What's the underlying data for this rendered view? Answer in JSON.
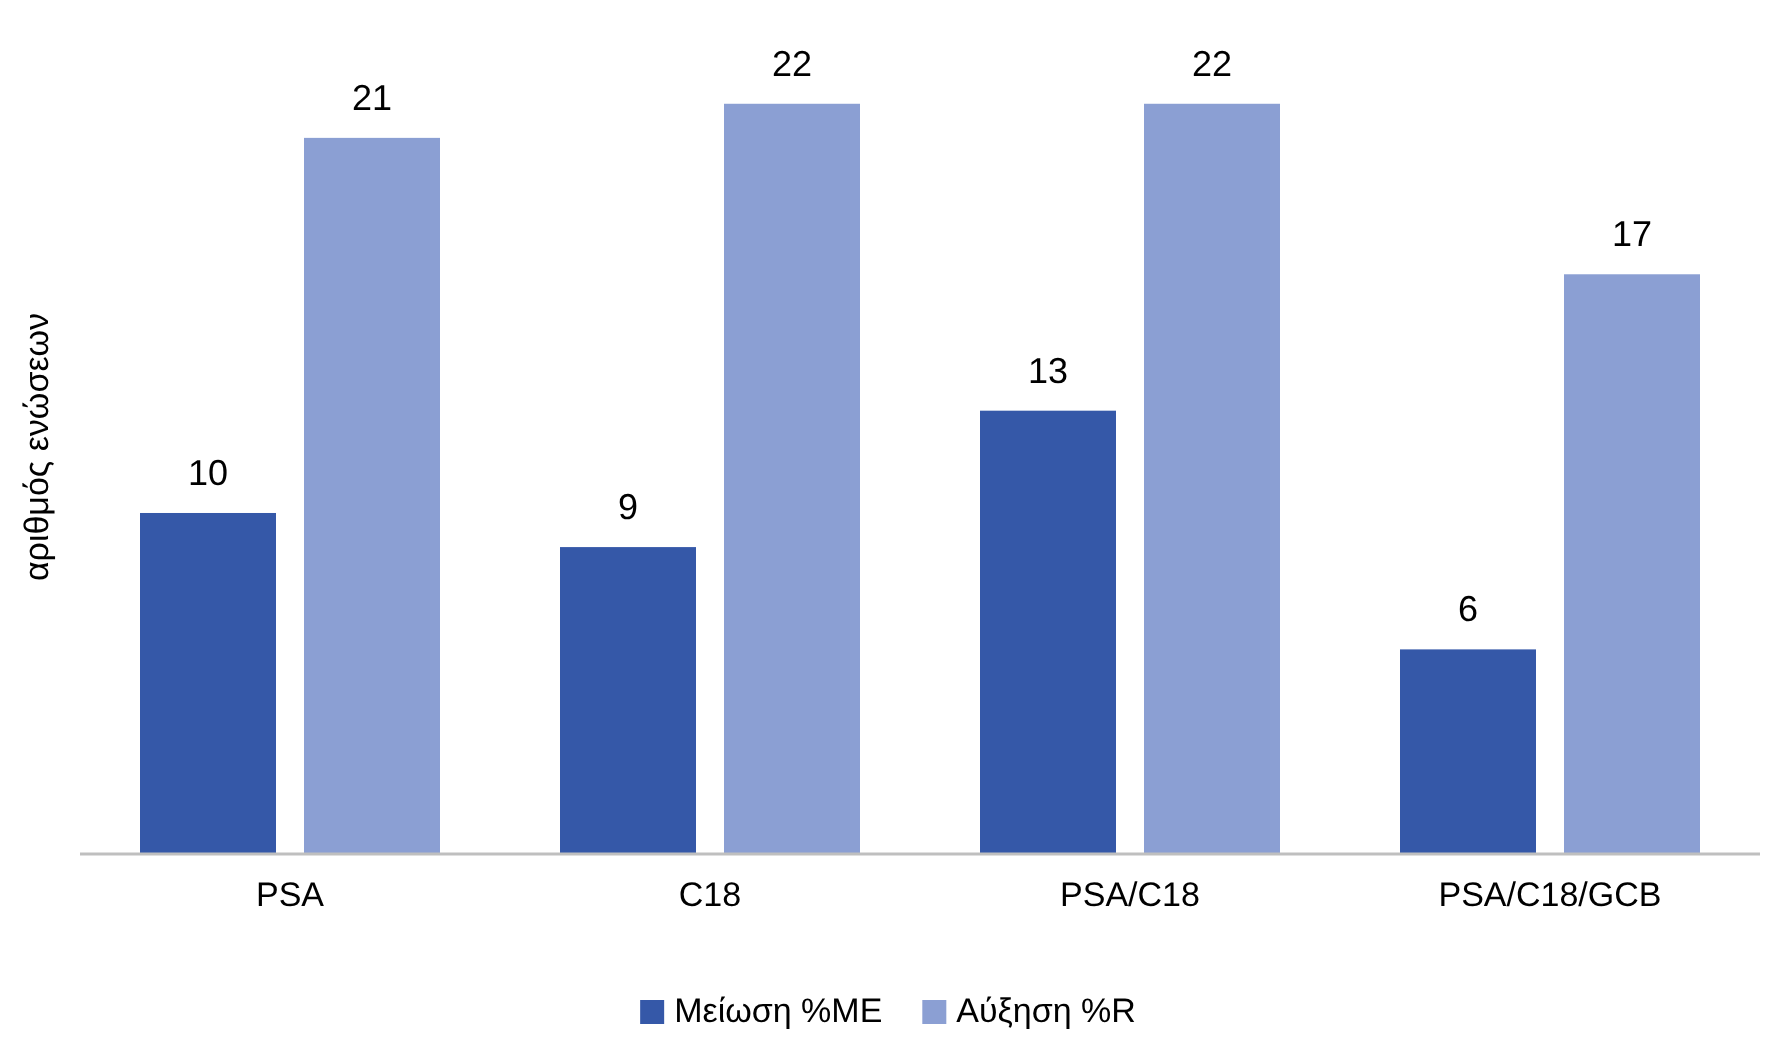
{
  "chart_data": {
    "type": "bar",
    "ylabel": "αριθμός ενώσεων",
    "categories": [
      "PSA",
      "C18",
      "PSA/C18",
      "PSA/C18/GCB"
    ],
    "series": [
      {
        "name": "Μείωση %ME",
        "color": "#3558a8",
        "values": [
          10,
          9,
          13,
          6
        ]
      },
      {
        "name": "Αύξηση %R",
        "color": "#8b9fd3",
        "values": [
          21,
          22,
          22,
          17
        ]
      }
    ],
    "data_labels": true,
    "legend": "bottom"
  }
}
